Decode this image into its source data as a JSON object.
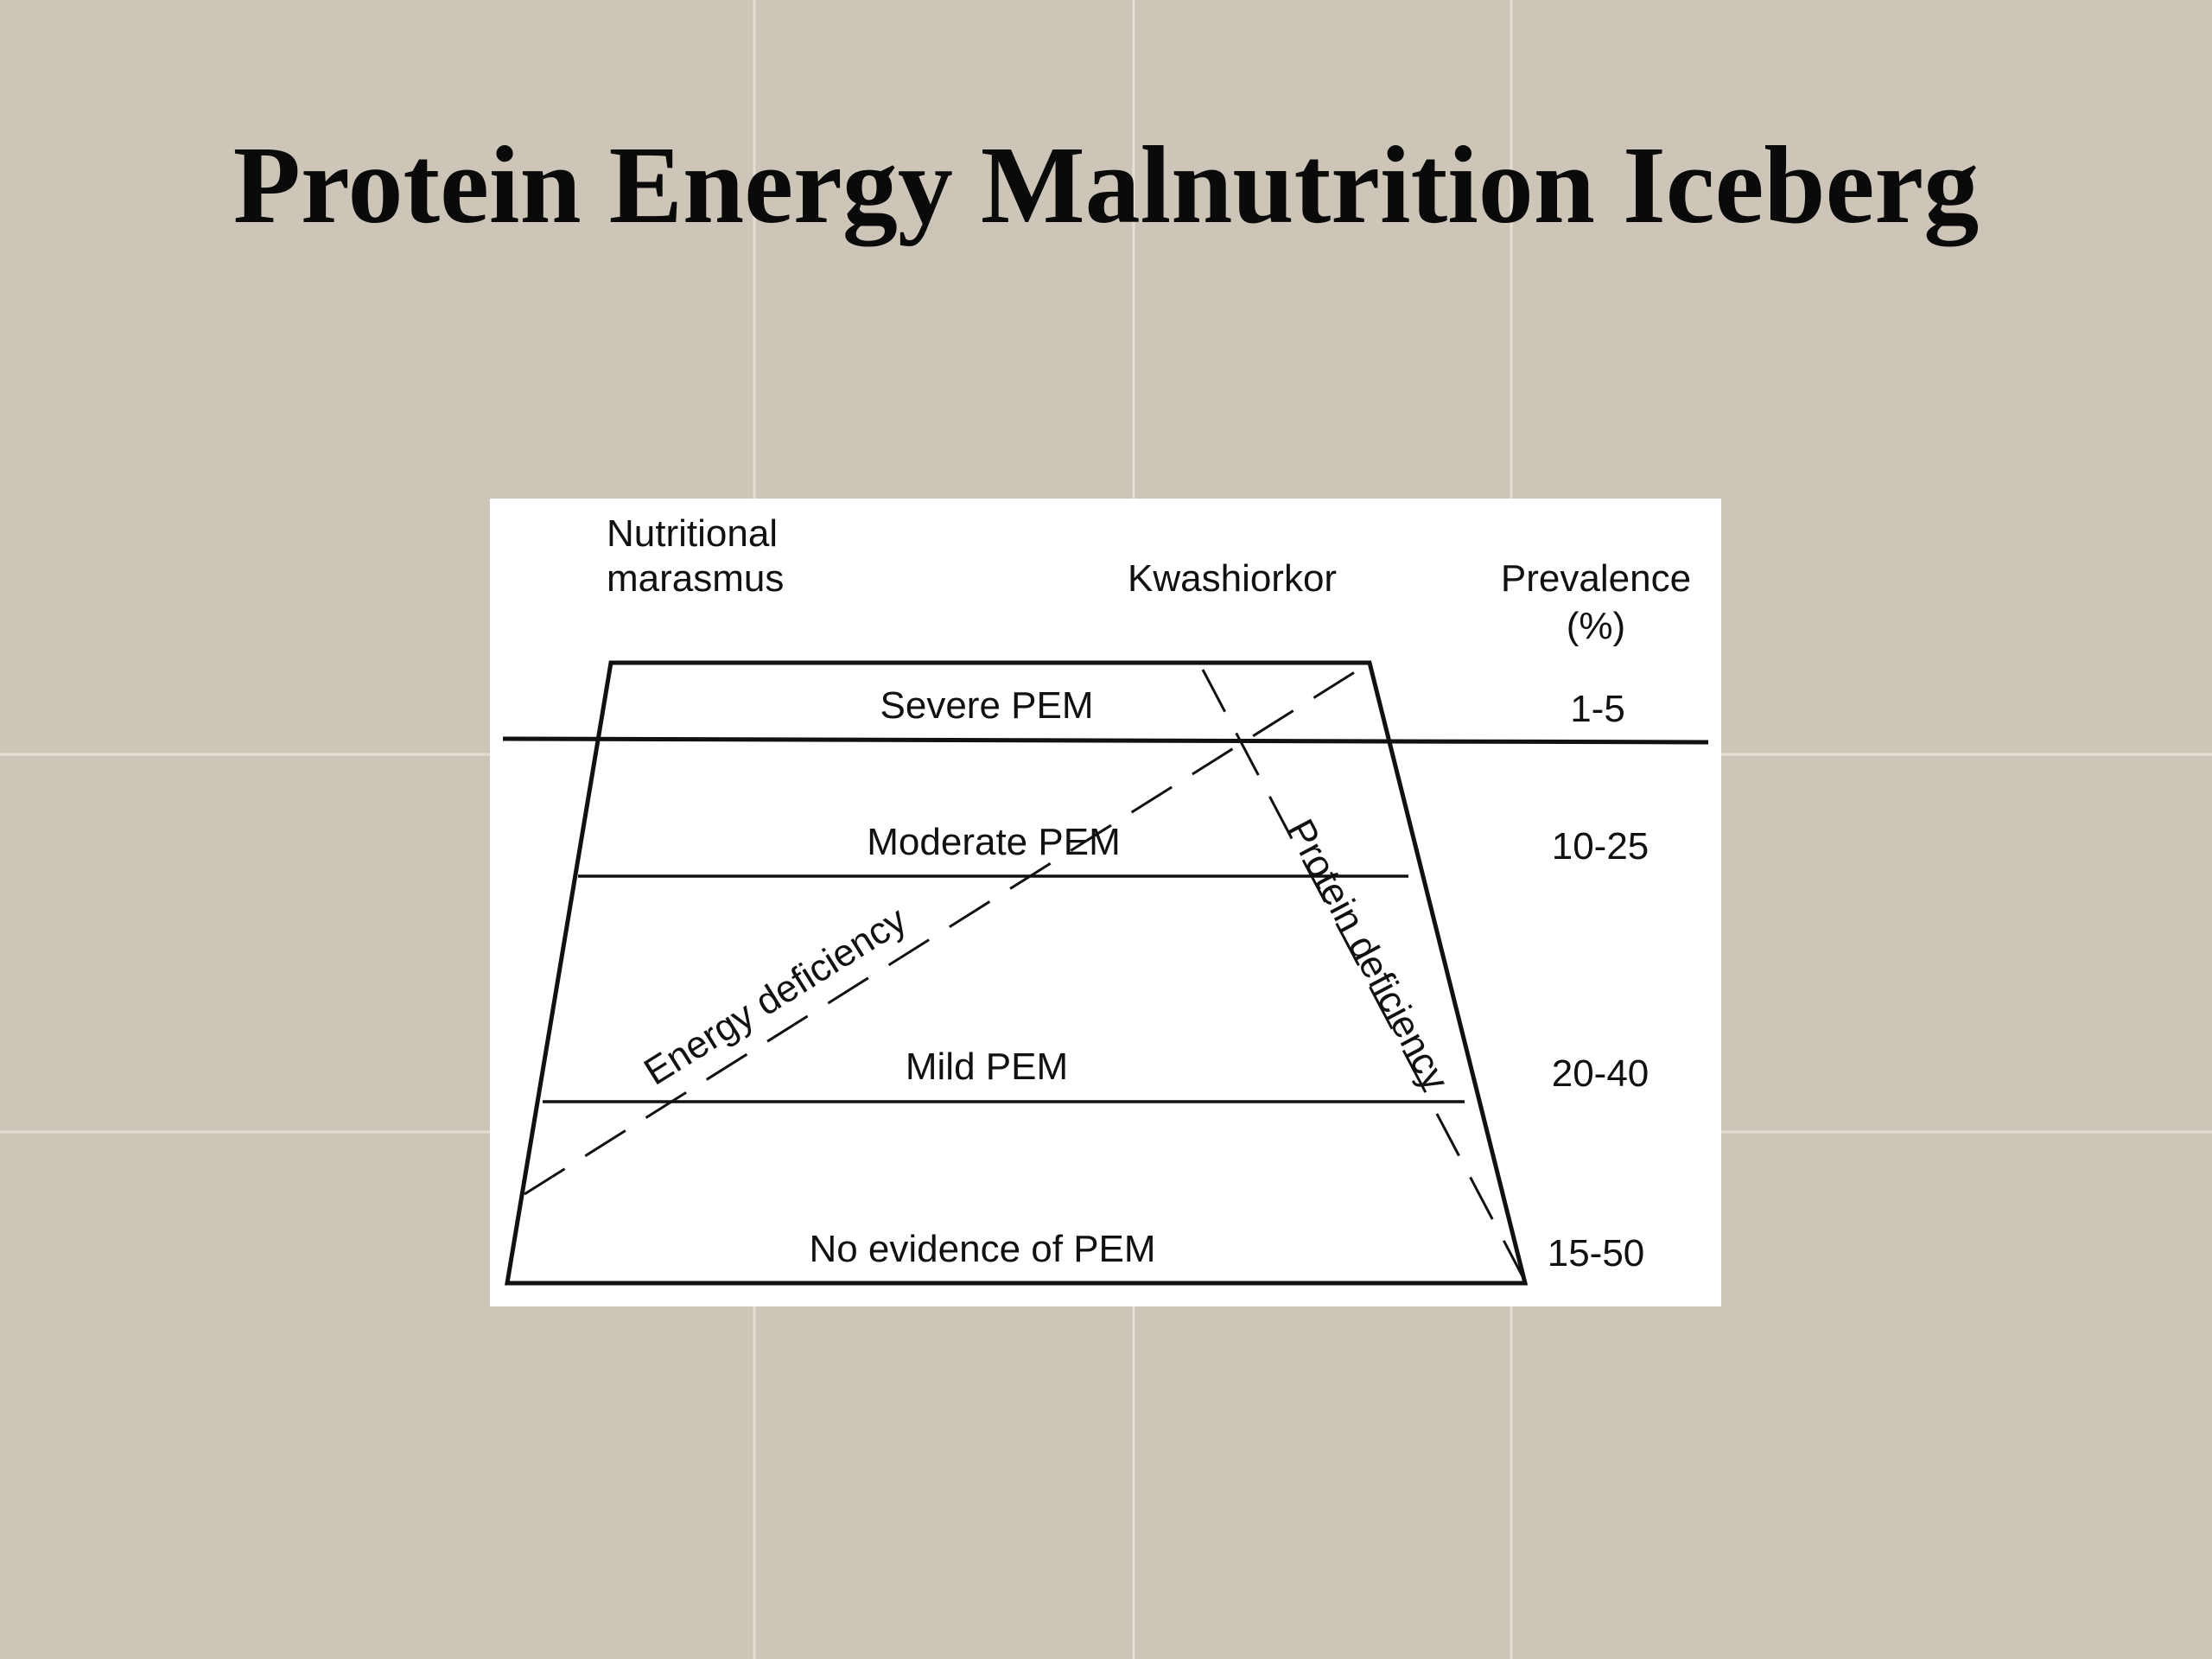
{
  "slide": {
    "title": "Protein Energy Malnutrition Iceberg",
    "background_color": "#cdc6b8"
  },
  "diagram": {
    "header_left_line1": "Nutritional",
    "header_left_line2": "marasmus",
    "header_middle": "Kwashiorkor",
    "header_right_line1": "Prevalence",
    "header_right_line2": "(%)",
    "levels": [
      {
        "label": "Severe PEM",
        "prevalence": "1-5"
      },
      {
        "label": "Moderate PEM",
        "prevalence": "10-25"
      },
      {
        "label": "Mild PEM",
        "prevalence": "20-40"
      },
      {
        "label": "No evidence of PEM",
        "prevalence": "15-50"
      }
    ],
    "energy_label": "Energy deficiency",
    "protein_label": "Protein deficiency"
  }
}
